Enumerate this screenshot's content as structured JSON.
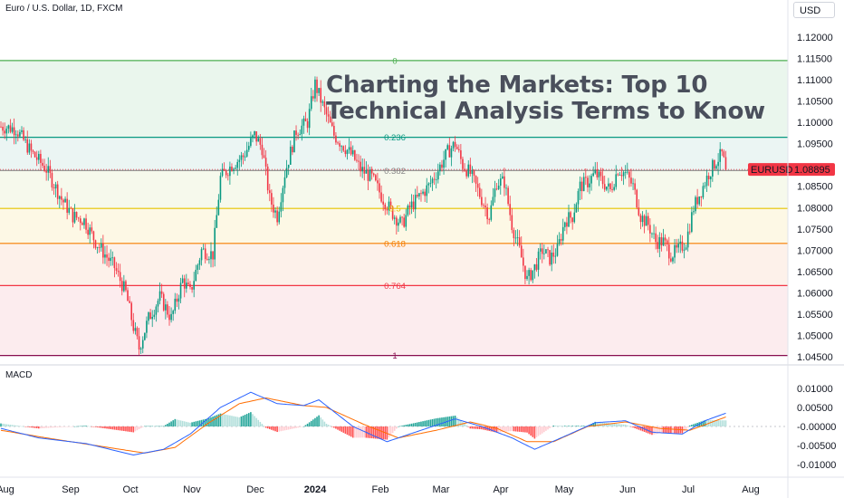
{
  "header": {
    "symbol_title": "Euro / U.S. Dollar, 1D, FXCM",
    "currency": "USD",
    "headline_line1": "Charting the Markets: Top 10",
    "headline_line2": "Technical Analysis Terms to Know"
  },
  "chart_data": [
    {
      "type": "candlestick",
      "symbol": "EURUSD",
      "last_price": "1.08895",
      "ylim": [
        1.045,
        1.1215
      ],
      "y_ticks": [
        "1.12000",
        "1.11500",
        "1.11000",
        "1.10500",
        "1.10000",
        "1.09500",
        "1.09000",
        "1.08500",
        "1.08000",
        "1.07500",
        "1.07000",
        "1.06500",
        "1.06000",
        "1.05500",
        "1.05000",
        "1.04500"
      ],
      "x_ticks": [
        "Aug",
        "Sep",
        "Oct",
        "Nov",
        "Dec",
        "2024",
        "Feb",
        "Mar",
        "Apr",
        "May",
        "Jun",
        "Jul",
        "Aug"
      ],
      "fibonacci": [
        {
          "level": "0",
          "price": 1.1145,
          "color": "#4caf50"
        },
        {
          "level": "0.236",
          "price": 1.0965,
          "color": "#089981"
        },
        {
          "level": "0.382",
          "price": 1.0887,
          "color": "#888888"
        },
        {
          "level": "0.5",
          "price": 1.0798,
          "color": "#e5c400"
        },
        {
          "level": "0.618",
          "price": 1.0716,
          "color": "#f57c00"
        },
        {
          "level": "0.764",
          "price": 1.0617,
          "color": "#f23645"
        },
        {
          "level": "1",
          "price": 1.0453,
          "color": "#880e4f"
        }
      ],
      "colors": {
        "up": "#089981",
        "down": "#f23645",
        "price_label_bg": "#f23645"
      },
      "path_anchors": [
        [
          0,
          1.099
        ],
        [
          8,
          1.0985
        ],
        [
          16,
          1.093
        ],
        [
          24,
          1.089
        ],
        [
          32,
          1.082
        ],
        [
          38,
          1.078
        ],
        [
          44,
          1.077
        ],
        [
          50,
          1.072
        ],
        [
          55,
          1.069
        ],
        [
          60,
          1.066
        ],
        [
          66,
          1.06
        ],
        [
          70,
          1.052
        ],
        [
          73,
          1.047
        ],
        [
          78,
          1.054
        ],
        [
          84,
          1.059
        ],
        [
          90,
          1.054
        ],
        [
          96,
          1.063
        ],
        [
          100,
          1.06
        ],
        [
          106,
          1.07
        ],
        [
          112,
          1.069
        ],
        [
          116,
          1.087
        ],
        [
          122,
          1.09
        ],
        [
          128,
          1.092
        ],
        [
          134,
          1.097
        ],
        [
          138,
          1.094
        ],
        [
          142,
          1.082
        ],
        [
          146,
          1.078
        ],
        [
          150,
          1.088
        ],
        [
          156,
          1.098
        ],
        [
          162,
          1.1
        ],
        [
          166,
          1.109
        ],
        [
          170,
          1.104
        ],
        [
          176,
          1.097
        ],
        [
          182,
          1.094
        ],
        [
          186,
          1.092
        ],
        [
          190,
          1.089
        ],
        [
          196,
          1.087
        ],
        [
          202,
          1.082
        ],
        [
          208,
          1.078
        ],
        [
          212,
          1.076
        ],
        [
          216,
          1.08
        ],
        [
          220,
          1.082
        ],
        [
          226,
          1.085
        ],
        [
          230,
          1.088
        ],
        [
          236,
          1.093
        ],
        [
          240,
          1.095
        ],
        [
          244,
          1.09
        ],
        [
          248,
          1.088
        ],
        [
          254,
          1.082
        ],
        [
          258,
          1.078
        ],
        [
          262,
          1.086
        ],
        [
          266,
          1.086
        ],
        [
          270,
          1.076
        ],
        [
          274,
          1.07
        ],
        [
          278,
          1.063
        ],
        [
          282,
          1.066
        ],
        [
          286,
          1.07
        ],
        [
          290,
          1.068
        ],
        [
          294,
          1.07
        ],
        [
          298,
          1.077
        ],
        [
          302,
          1.078
        ],
        [
          306,
          1.085
        ],
        [
          310,
          1.086
        ],
        [
          314,
          1.088
        ],
        [
          318,
          1.086
        ],
        [
          322,
          1.084
        ],
        [
          326,
          1.089
        ],
        [
          330,
          1.088
        ],
        [
          334,
          1.085
        ],
        [
          338,
          1.078
        ],
        [
          342,
          1.076
        ],
        [
          346,
          1.072
        ],
        [
          350,
          1.072
        ],
        [
          354,
          1.069
        ],
        [
          358,
          1.07
        ],
        [
          362,
          1.072
        ],
        [
          366,
          1.08
        ],
        [
          370,
          1.084
        ],
        [
          374,
          1.088
        ],
        [
          378,
          1.091
        ],
        [
          381,
          1.0925
        ],
        [
          383,
          1.089
        ]
      ]
    },
    {
      "type": "macd",
      "title": "MACD",
      "ylim": [
        -0.0125,
        0.0125
      ],
      "y_ticks": [
        "0.01000",
        "0.00500",
        "-0.00000",
        "-0.00500",
        "-0.01000"
      ],
      "colors": {
        "macd": "#2962ff",
        "signal": "#ff6d00",
        "hist_up": "#26a69a",
        "hist_up_light": "#b2dfdb",
        "hist_down": "#ff5252",
        "hist_down_light": "#ffcdd2"
      },
      "macd_anchors": [
        [
          0,
          -0.0005
        ],
        [
          20,
          -0.003
        ],
        [
          45,
          -0.0045
        ],
        [
          70,
          -0.0075
        ],
        [
          86,
          -0.006
        ],
        [
          100,
          -0.002
        ],
        [
          116,
          0.005
        ],
        [
          132,
          0.009
        ],
        [
          146,
          0.006
        ],
        [
          160,
          0.0055
        ],
        [
          168,
          0.007
        ],
        [
          186,
          0.0
        ],
        [
          204,
          -0.004
        ],
        [
          222,
          -0.001
        ],
        [
          240,
          0.002
        ],
        [
          254,
          0.0
        ],
        [
          270,
          -0.003
        ],
        [
          282,
          -0.006
        ],
        [
          296,
          -0.003
        ],
        [
          314,
          0.001
        ],
        [
          330,
          0.0015
        ],
        [
          344,
          -0.0015
        ],
        [
          360,
          -0.002
        ],
        [
          372,
          0.0015
        ],
        [
          383,
          0.0035
        ]
      ],
      "signal_anchors": [
        [
          0,
          -0.001
        ],
        [
          24,
          -0.003
        ],
        [
          50,
          -0.005
        ],
        [
          76,
          -0.007
        ],
        [
          92,
          -0.0055
        ],
        [
          110,
          0.001
        ],
        [
          126,
          0.006
        ],
        [
          140,
          0.0075
        ],
        [
          160,
          0.0055
        ],
        [
          172,
          0.005
        ],
        [
          192,
          0.0005
        ],
        [
          210,
          -0.003
        ],
        [
          230,
          -0.001
        ],
        [
          248,
          0.0012
        ],
        [
          262,
          -0.0005
        ],
        [
          278,
          -0.004
        ],
        [
          292,
          -0.004
        ],
        [
          310,
          0.0
        ],
        [
          330,
          0.0012
        ],
        [
          348,
          -0.0005
        ],
        [
          364,
          -0.001
        ],
        [
          376,
          0.0012
        ],
        [
          383,
          0.0025
        ]
      ]
    }
  ]
}
